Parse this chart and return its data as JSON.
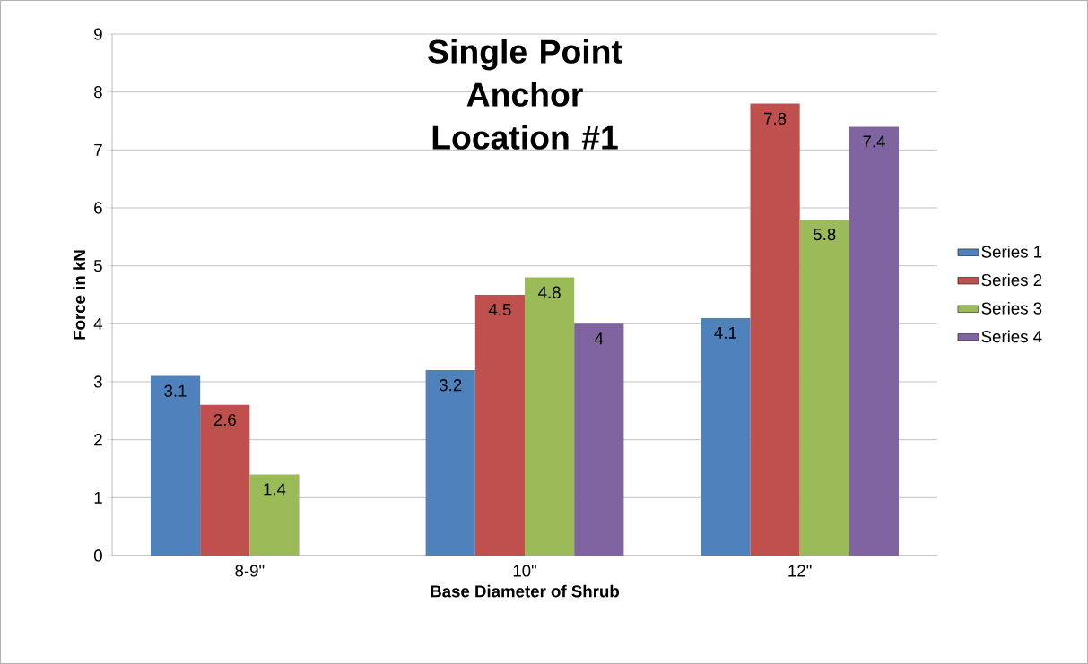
{
  "chart_data": {
    "type": "bar",
    "title": "Single Point Anchor Location #1",
    "xlabel": "Base Diameter of Shrub",
    "ylabel": "Force in kN",
    "categories": [
      "8-9\"",
      "10\"",
      "12\""
    ],
    "series": [
      {
        "name": "Series 1",
        "color": "#4f81bd",
        "values": [
          3.1,
          3.2,
          4.1
        ]
      },
      {
        "name": "Series 2",
        "color": "#c0504d",
        "values": [
          2.6,
          4.5,
          7.8
        ]
      },
      {
        "name": "Series 3",
        "color": "#9bbb59",
        "values": [
          1.4,
          4.8,
          5.8
        ]
      },
      {
        "name": "Series 4",
        "color": "#8064a2",
        "values": [
          null,
          4,
          7.4
        ]
      }
    ],
    "ylim": [
      0,
      9
    ],
    "yticks": [
      0,
      1,
      2,
      3,
      4,
      5,
      6,
      7,
      8,
      9
    ],
    "grid": "y",
    "legend": "right",
    "data_labels": true
  }
}
